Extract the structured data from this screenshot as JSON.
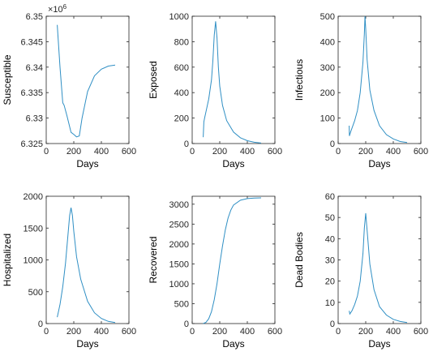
{
  "chart_data": [
    {
      "type": "line",
      "title": "",
      "xlabel": "Days",
      "ylabel": "Susceptible",
      "xlim": [
        0,
        600
      ],
      "ylim": [
        6325000,
        6350000
      ],
      "xticks": [
        0,
        200,
        400,
        600
      ],
      "yticks": [
        6325000,
        6330000,
        6335000,
        6340000,
        6345000,
        6350000
      ],
      "ytick_labels": [
        "6.325",
        "6.33",
        "6.335",
        "6.34",
        "6.345",
        "6.35"
      ],
      "exponent_label": "×10",
      "exponent_power": "6",
      "x": [
        80,
        100,
        120,
        130,
        150,
        180,
        200,
        220,
        240,
        260,
        300,
        350,
        400,
        450,
        500
      ],
      "y": [
        6348300,
        6340000,
        6333000,
        6332500,
        6330500,
        6327200,
        6326800,
        6326300,
        6326500,
        6330000,
        6335200,
        6338300,
        6339600,
        6340200,
        6340400
      ],
      "series": [
        {
          "values": [
            6348300,
            6340000,
            6333000,
            6332500,
            6330500,
            6327200,
            6326800,
            6326300,
            6326500,
            6330000,
            6335200,
            6338300,
            6339600,
            6340200,
            6340400
          ]
        }
      ]
    },
    {
      "type": "line",
      "title": "",
      "xlabel": "Days",
      "ylabel": "Exposed",
      "xlim": [
        0,
        600
      ],
      "ylim": [
        0,
        1000
      ],
      "xticks": [
        0,
        200,
        400,
        600
      ],
      "yticks": [
        0,
        200,
        400,
        600,
        800,
        1000
      ],
      "ytick_labels": [
        "0",
        "200",
        "400",
        "600",
        "800",
        "1000"
      ],
      "x": [
        80,
        85,
        90,
        100,
        120,
        140,
        150,
        160,
        170,
        180,
        190,
        200,
        220,
        250,
        300,
        350,
        400,
        450,
        500
      ],
      "y": [
        50,
        170,
        200,
        250,
        350,
        500,
        650,
        850,
        960,
        830,
        600,
        450,
        300,
        180,
        90,
        45,
        22,
        10,
        4
      ],
      "series": [
        {
          "values": [
            50,
            170,
            200,
            250,
            350,
            500,
            650,
            850,
            960,
            830,
            600,
            450,
            300,
            180,
            90,
            45,
            22,
            10,
            4
          ]
        }
      ]
    },
    {
      "type": "line",
      "title": "",
      "xlabel": "Days",
      "ylabel": "Infectious",
      "xlim": [
        0,
        600
      ],
      "ylim": [
        0,
        500
      ],
      "xticks": [
        0,
        200,
        400,
        600
      ],
      "yticks": [
        0,
        100,
        200,
        300,
        400,
        500
      ],
      "ytick_labels": [
        "0",
        "100",
        "200",
        "300",
        "400",
        "500"
      ],
      "x": [
        80,
        82,
        90,
        100,
        120,
        140,
        160,
        180,
        190,
        195,
        200,
        210,
        230,
        260,
        300,
        350,
        400,
        450,
        500
      ],
      "y": [
        70,
        30,
        45,
        60,
        90,
        130,
        200,
        320,
        430,
        500,
        450,
        330,
        210,
        130,
        70,
        35,
        18,
        8,
        4
      ],
      "series": [
        {
          "values": [
            70,
            30,
            45,
            60,
            90,
            130,
            200,
            320,
            430,
            500,
            450,
            330,
            210,
            130,
            70,
            35,
            18,
            8,
            4
          ]
        }
      ]
    },
    {
      "type": "line",
      "title": "",
      "xlabel": "Days",
      "ylabel": "Hospitalized",
      "xlim": [
        0,
        600
      ],
      "ylim": [
        0,
        2000
      ],
      "xticks": [
        0,
        200,
        400,
        600
      ],
      "yticks": [
        0,
        500,
        1000,
        1500,
        2000
      ],
      "ytick_labels": [
        "0",
        "500",
        "1000",
        "1500",
        "2000"
      ],
      "x": [
        80,
        90,
        100,
        120,
        140,
        160,
        170,
        180,
        190,
        200,
        220,
        250,
        300,
        350,
        400,
        450,
        500
      ],
      "y": [
        100,
        200,
        300,
        580,
        950,
        1450,
        1700,
        1820,
        1700,
        1450,
        1050,
        700,
        350,
        170,
        80,
        35,
        15
      ],
      "series": [
        {
          "values": [
            100,
            200,
            300,
            580,
            950,
            1450,
            1700,
            1820,
            1700,
            1450,
            1050,
            700,
            350,
            170,
            80,
            35,
            15
          ]
        }
      ]
    },
    {
      "type": "line",
      "title": "",
      "xlabel": "Days",
      "ylabel": "Recovered",
      "xlim": [
        0,
        600
      ],
      "ylim": [
        0,
        3200
      ],
      "xticks": [
        0,
        200,
        400,
        600
      ],
      "yticks": [
        0,
        500,
        1000,
        1500,
        2000,
        2500,
        3000
      ],
      "ytick_labels": [
        "0",
        "500",
        "1000",
        "1500",
        "2000",
        "2500",
        "3000"
      ],
      "x": [
        80,
        100,
        120,
        140,
        160,
        180,
        200,
        220,
        240,
        260,
        280,
        300,
        350,
        400,
        450,
        500
      ],
      "y": [
        0,
        30,
        120,
        300,
        600,
        1000,
        1500,
        1950,
        2350,
        2650,
        2850,
        2980,
        3100,
        3140,
        3155,
        3160
      ],
      "series": [
        {
          "values": [
            0,
            30,
            120,
            300,
            600,
            1000,
            1500,
            1950,
            2350,
            2650,
            2850,
            2980,
            3100,
            3140,
            3155,
            3160
          ]
        }
      ]
    },
    {
      "type": "line",
      "title": "",
      "xlabel": "Days",
      "ylabel": "Dead Bodies",
      "xlim": [
        0,
        600
      ],
      "ylim": [
        0,
        60
      ],
      "xticks": [
        0,
        200,
        400,
        600
      ],
      "yticks": [
        0,
        10,
        20,
        30,
        40,
        50,
        60
      ],
      "ytick_labels": [
        "0",
        "10",
        "20",
        "30",
        "40",
        "50",
        "60"
      ],
      "x": [
        80,
        85,
        100,
        120,
        140,
        160,
        180,
        190,
        200,
        210,
        230,
        260,
        300,
        350,
        400,
        450,
        500
      ],
      "y": [
        6,
        4.5,
        6,
        9,
        13,
        20,
        33,
        45,
        52,
        44,
        28,
        16,
        8,
        4,
        2,
        1,
        0.5
      ],
      "series": [
        {
          "values": [
            6,
            4.5,
            6,
            9,
            13,
            20,
            33,
            45,
            52,
            44,
            28,
            16,
            8,
            4,
            2,
            1,
            0.5
          ]
        }
      ]
    }
  ],
  "colors": {
    "line": "#2f8fc4",
    "axis": "#262626"
  }
}
